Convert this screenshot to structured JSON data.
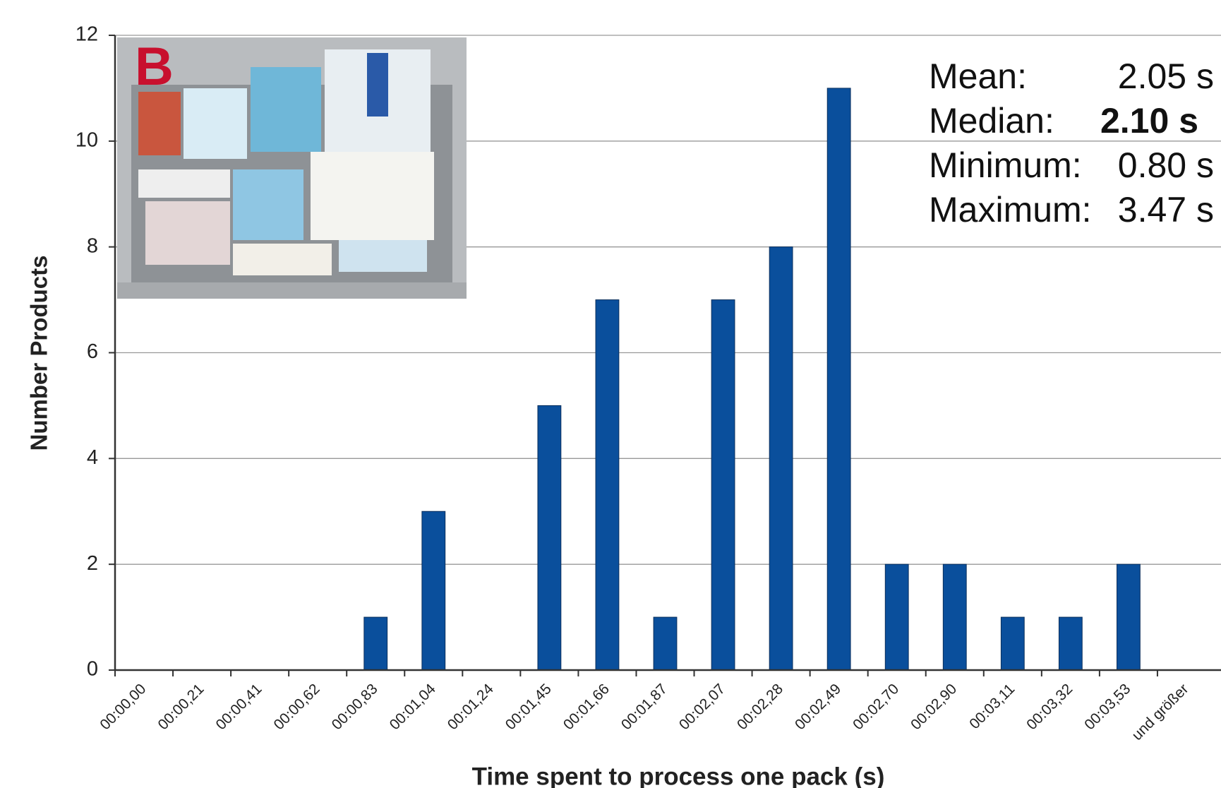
{
  "chart_data": {
    "type": "bar",
    "panel_label": "B",
    "x_label": "Time spent to process one pack  (s)",
    "y_label": "Number  Products",
    "categories": [
      "00:00,00",
      "00:00,21",
      "00:00,41",
      "00:00,62",
      "00:00,83",
      "00:01,04",
      "00:01,24",
      "00:01,45",
      "00:01,66",
      "00:01,87",
      "00:02,07",
      "00:02,28",
      "00:02,49",
      "00:02,70",
      "00:02,90",
      "00:03,11",
      "00:03,32",
      "00:03,53",
      "und größer"
    ],
    "values": [
      0,
      0,
      0,
      0,
      1,
      3,
      0,
      5,
      7,
      1,
      7,
      8,
      11,
      2,
      2,
      1,
      1,
      2,
      0
    ],
    "color": "#0a4f9c",
    "ylim": [
      0,
      12
    ],
    "yticks": [
      0,
      2,
      4,
      6,
      8,
      10,
      12
    ],
    "grid": true,
    "stats": [
      {
        "label": "Mean:",
        "value": "2.05 s"
      },
      {
        "label": "Median:",
        "value": "2.10 s"
      },
      {
        "label": "Minimum:",
        "value": "0.80 s"
      },
      {
        "label": "Maximum:",
        "value": "3.47 s"
      }
    ]
  }
}
